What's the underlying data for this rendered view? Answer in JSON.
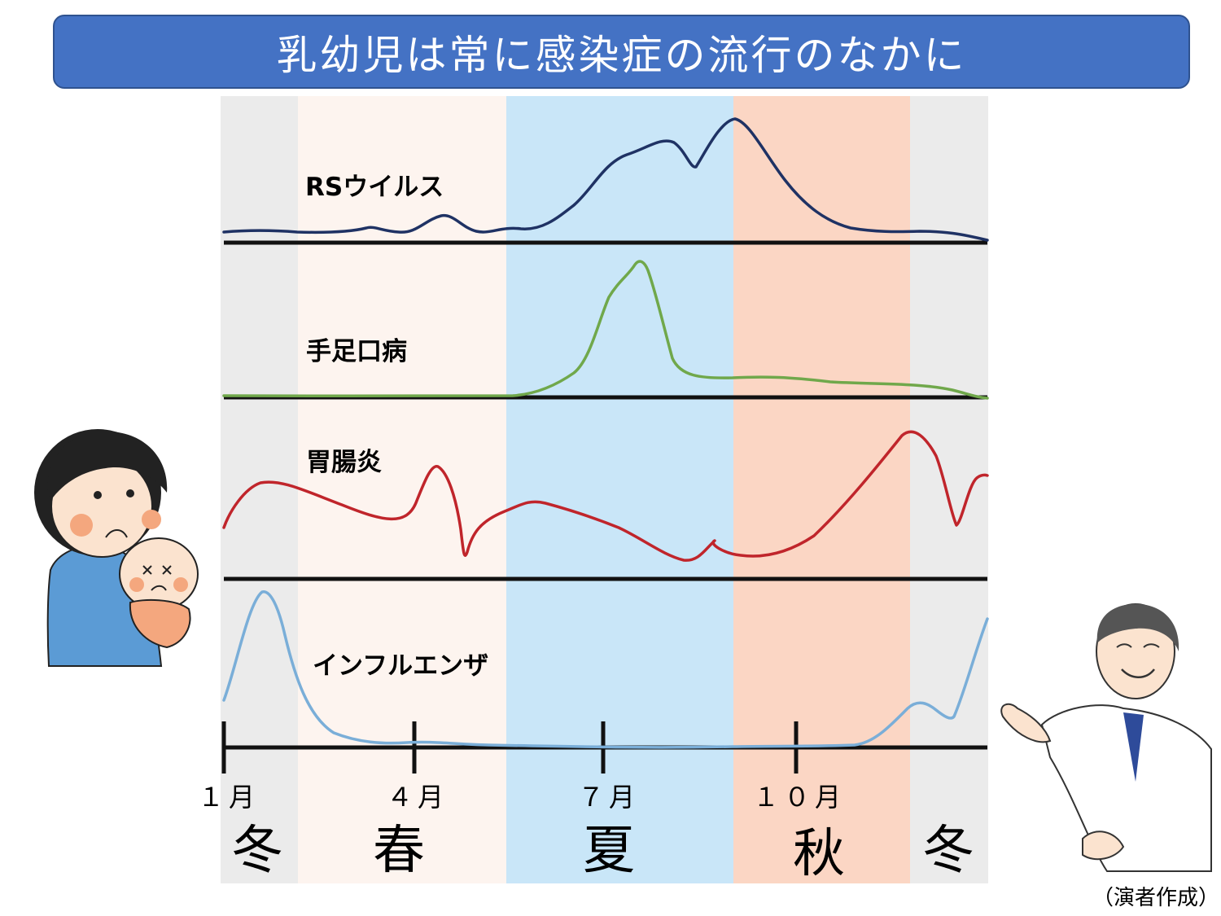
{
  "title": "乳幼児は常に感染症の流行のなかに",
  "credit": "（演者作成）",
  "diseases": [
    {
      "label": "RSウイルス",
      "color": "#1f3264"
    },
    {
      "label": "手足口病",
      "color": "#70a84b"
    },
    {
      "label": "胃腸炎",
      "color": "#c0252b"
    },
    {
      "label": "インフルエンザ",
      "color": "#7aaed8"
    }
  ],
  "months": [
    "１月",
    "４月",
    "７月",
    "１０月"
  ],
  "seasons": [
    "冬",
    "春",
    "夏",
    "秋",
    "冬"
  ],
  "season_colors": [
    "#ebebeb",
    "#fdf4ef",
    "#c9e6f8",
    "#fbd6c4",
    "#ebebeb"
  ]
}
